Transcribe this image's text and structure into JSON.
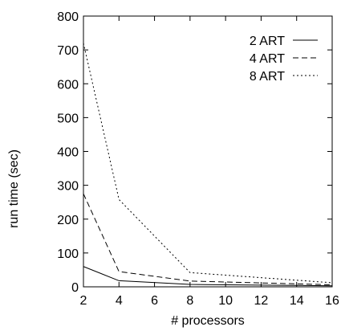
{
  "chart_data": {
    "type": "line",
    "title": "",
    "xlabel": "# processors",
    "ylabel": "run time (sec)",
    "xlim": [
      2,
      16
    ],
    "ylim": [
      0,
      800
    ],
    "xticks": [
      2,
      4,
      6,
      8,
      10,
      12,
      14,
      16
    ],
    "yticks": [
      0,
      100,
      200,
      300,
      400,
      500,
      600,
      700,
      800
    ],
    "grid": false,
    "legend_position": "top-right",
    "series": [
      {
        "name": "2 ART",
        "line_style": "solid",
        "color": "#000000",
        "points": [
          [
            2,
            60
          ],
          [
            4,
            18
          ],
          [
            8,
            7
          ],
          [
            16,
            3
          ]
        ]
      },
      {
        "name": "4 ART",
        "line_style": "dashed",
        "color": "#000000",
        "points": [
          [
            2,
            275
          ],
          [
            4,
            45
          ],
          [
            8,
            17
          ],
          [
            16,
            6
          ]
        ]
      },
      {
        "name": "8 ART",
        "line_style": "dotted",
        "color": "#000000",
        "points": [
          [
            2,
            720
          ],
          [
            4,
            258
          ],
          [
            8,
            42
          ],
          [
            16,
            12
          ]
        ]
      }
    ]
  }
}
